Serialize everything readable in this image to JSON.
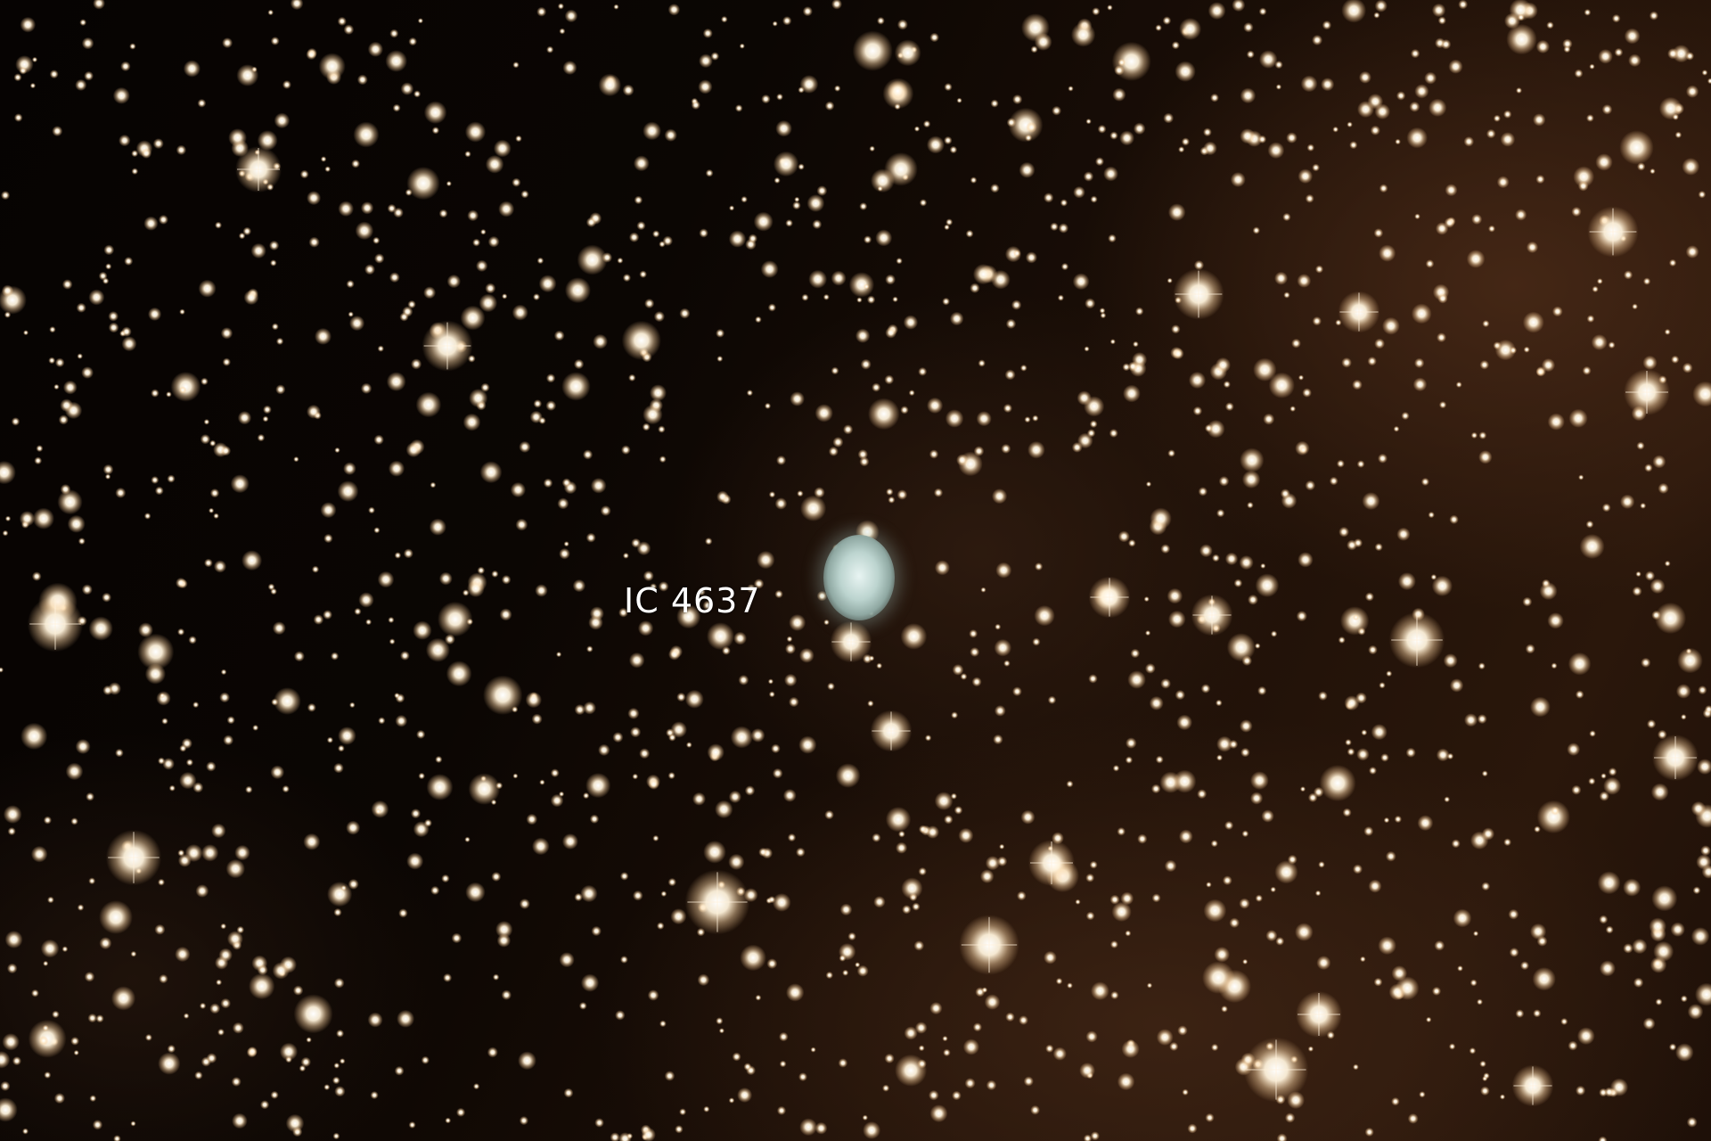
{
  "image": {
    "subject": "IC 4637",
    "label_text": "IC 4637",
    "colors": {
      "sky_dark": "#050201",
      "sky_brown": "#2a170b",
      "star_core": "#ffffff",
      "star_halo": "#ffd9a8",
      "nebula": "#bcd4cf",
      "label": "#ffffff"
    }
  }
}
